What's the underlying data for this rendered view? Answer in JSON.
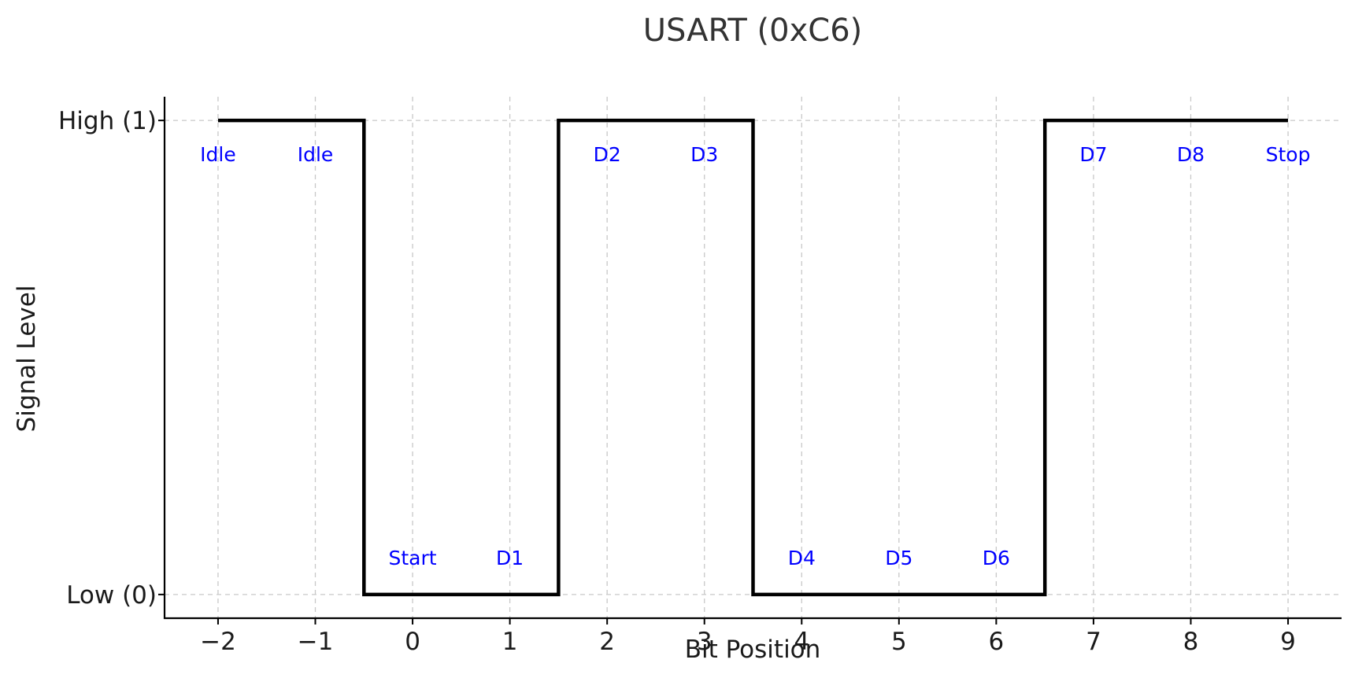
{
  "chart_data": {
    "type": "line",
    "title": "USART (0xC6)",
    "xlabel": "Bit Position",
    "ylabel": "Signal Level",
    "xlim": [
      -2.55,
      9.55
    ],
    "ylim": [
      -0.05,
      1.05
    ],
    "x_ticks": [
      {
        "value": -2,
        "label": "−2"
      },
      {
        "value": -1,
        "label": "−1"
      },
      {
        "value": 0,
        "label": "0"
      },
      {
        "value": 1,
        "label": "1"
      },
      {
        "value": 2,
        "label": "2"
      },
      {
        "value": 3,
        "label": "3"
      },
      {
        "value": 4,
        "label": "4"
      },
      {
        "value": 5,
        "label": "5"
      },
      {
        "value": 6,
        "label": "6"
      },
      {
        "value": 7,
        "label": "7"
      },
      {
        "value": 8,
        "label": "8"
      },
      {
        "value": 9,
        "label": "9"
      }
    ],
    "y_ticks": [
      {
        "value": 0,
        "label": "Low (0)"
      },
      {
        "value": 1,
        "label": "High (1)"
      }
    ],
    "grid": true,
    "line_color": "#000000",
    "annotation_color": "#0000ff",
    "series": [
      {
        "x": [
          -2,
          -0.5,
          -0.5,
          1.5,
          1.5,
          3.5,
          3.5,
          6.5,
          6.5,
          9
        ],
        "y": [
          1,
          1,
          0,
          0,
          1,
          1,
          0,
          0,
          1,
          1
        ]
      }
    ],
    "bits": [
      {
        "x": -2,
        "level": 1,
        "label": "Idle"
      },
      {
        "x": -1,
        "level": 1,
        "label": "Idle"
      },
      {
        "x": 0,
        "level": 0,
        "label": "Start"
      },
      {
        "x": 1,
        "level": 0,
        "label": "D1"
      },
      {
        "x": 2,
        "level": 1,
        "label": "D2"
      },
      {
        "x": 3,
        "level": 1,
        "label": "D3"
      },
      {
        "x": 4,
        "level": 0,
        "label": "D4"
      },
      {
        "x": 5,
        "level": 0,
        "label": "D5"
      },
      {
        "x": 6,
        "level": 0,
        "label": "D6"
      },
      {
        "x": 7,
        "level": 1,
        "label": "D7"
      },
      {
        "x": 8,
        "level": 1,
        "label": "D8"
      },
      {
        "x": 9,
        "level": 1,
        "label": "Stop"
      }
    ]
  }
}
